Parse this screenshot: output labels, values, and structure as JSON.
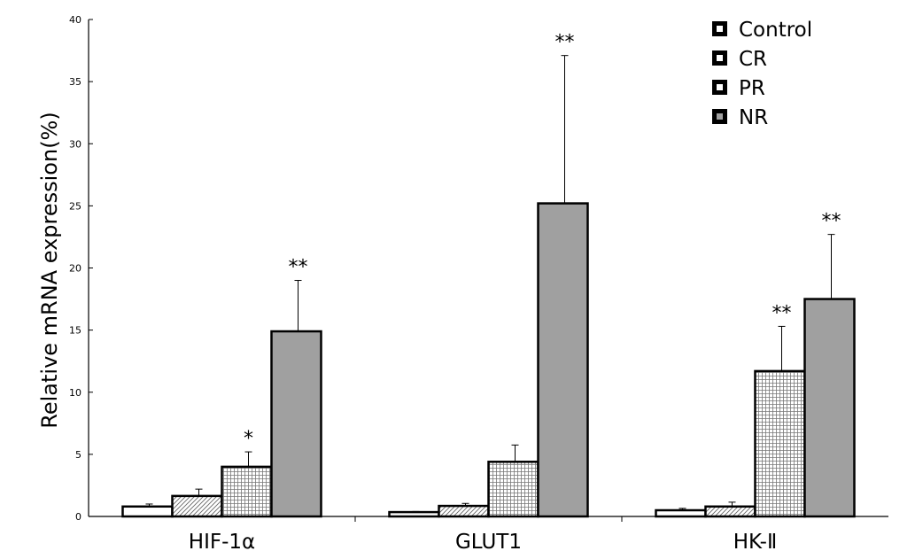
{
  "chart_data": {
    "type": "bar",
    "title": "",
    "xlabel": "",
    "ylabel": "Relative mRNA expression(%)",
    "ylim": [
      0,
      40
    ],
    "yticks": [
      "0",
      "5",
      "10",
      "15",
      "20",
      "25",
      "30",
      "35",
      "40"
    ],
    "categories": [
      "HIF-1α",
      "GLUT1",
      "HK-Ⅱ"
    ],
    "grid": false,
    "legend_position": "top-right",
    "series": [
      {
        "name": "Control",
        "values": [
          0.8,
          0.35,
          0.5
        ],
        "errors": [
          0.2,
          0.05,
          0.15
        ],
        "significance": [
          "",
          "",
          ""
        ]
      },
      {
        "name": "CR",
        "values": [
          1.65,
          0.85,
          0.8
        ],
        "errors": [
          0.55,
          0.2,
          0.35
        ],
        "significance": [
          "",
          "",
          ""
        ]
      },
      {
        "name": "PR",
        "values": [
          4.0,
          4.4,
          11.7
        ],
        "errors": [
          1.2,
          1.35,
          3.6
        ],
        "significance": [
          "*",
          "",
          "**"
        ]
      },
      {
        "name": "NR",
        "values": [
          14.9,
          25.2,
          17.5
        ],
        "errors": [
          4.1,
          11.9,
          5.2
        ],
        "significance": [
          "**",
          "**",
          "**"
        ]
      }
    ]
  }
}
